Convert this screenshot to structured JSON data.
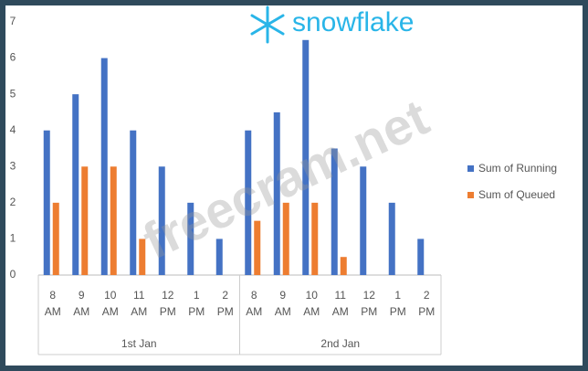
{
  "chart_data": {
    "type": "bar",
    "logo_text": "snowflake",
    "watermark": "freecram.net",
    "categories": [
      "8 AM",
      "9 AM",
      "10 AM",
      "11 AM",
      "12 PM",
      "1 PM",
      "2 PM",
      "8 AM",
      "9 AM",
      "10 AM",
      "11 AM",
      "12 PM",
      "1 PM",
      "2 PM"
    ],
    "group_labels": [
      "1st Jan",
      "2nd Jan"
    ],
    "series": [
      {
        "name": "Sum of Running",
        "color": "#4472c4",
        "values": [
          4,
          5,
          6,
          4,
          3,
          2,
          1,
          4,
          4.5,
          6.5,
          3.5,
          3,
          2,
          1
        ]
      },
      {
        "name": "Sum of Queued",
        "color": "#ed7d31",
        "values": [
          2,
          3,
          3,
          1,
          0,
          0,
          0,
          1.5,
          2,
          2,
          0.5,
          0,
          0,
          0
        ]
      }
    ],
    "ylim": [
      0,
      7
    ],
    "yticks": [
      0,
      1,
      2,
      3,
      4,
      5,
      6,
      7
    ],
    "grid": false,
    "legend": "right"
  }
}
